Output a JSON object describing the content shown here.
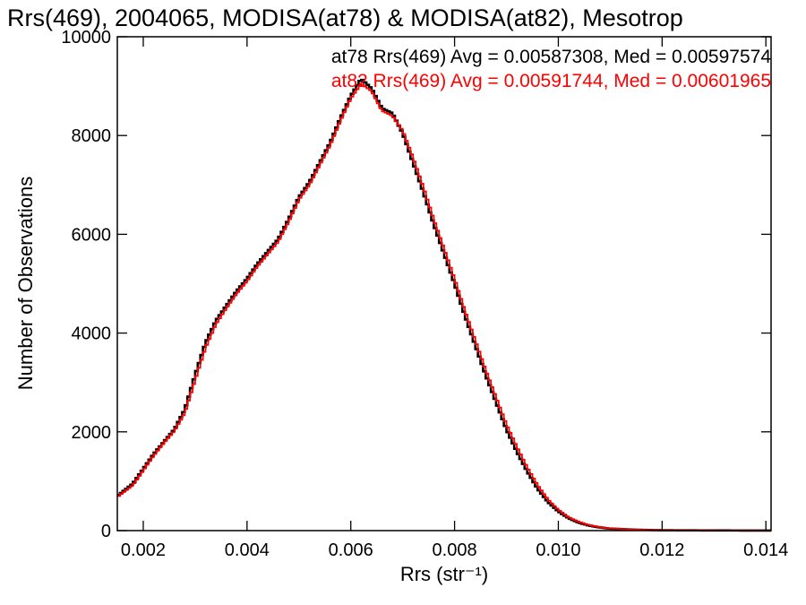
{
  "chart_data": {
    "type": "line",
    "title": "Rrs(469), 2004065, MODISA(at78) & MODISA(at82), Mesotrop",
    "xlabel": "Rrs (str⁻¹)",
    "ylabel": "Number of Observations",
    "xlim": [
      0.0015,
      0.0141
    ],
    "ylim": [
      0,
      10000
    ],
    "xticks": [
      0.002,
      0.004,
      0.006,
      0.008,
      0.01,
      0.012,
      0.014
    ],
    "xtick_labels": [
      "0.002",
      "0.004",
      "0.006",
      "0.008",
      "0.010",
      "0.012",
      "0.014"
    ],
    "yticks": [
      0,
      2000,
      4000,
      6000,
      8000,
      10000
    ],
    "ytick_labels": [
      "0",
      "2000",
      "4000",
      "6000",
      "8000",
      "10000"
    ],
    "grid": false,
    "step": true,
    "series": [
      {
        "name": "at78",
        "color": "#000000",
        "stats_label": "at78 Rrs(469) Avg = 0.00587308, Med = 0.00597574",
        "points": [
          [
            0.0015,
            700
          ],
          [
            0.0018,
            950
          ],
          [
            0.002,
            1250
          ],
          [
            0.0022,
            1550
          ],
          [
            0.0024,
            1800
          ],
          [
            0.0026,
            2050
          ],
          [
            0.0028,
            2450
          ],
          [
            0.003,
            3150
          ],
          [
            0.0032,
            3800
          ],
          [
            0.0034,
            4250
          ],
          [
            0.0036,
            4550
          ],
          [
            0.0038,
            4850
          ],
          [
            0.004,
            5100
          ],
          [
            0.0042,
            5400
          ],
          [
            0.0044,
            5650
          ],
          [
            0.0046,
            5900
          ],
          [
            0.0048,
            6300
          ],
          [
            0.005,
            6750
          ],
          [
            0.0052,
            7050
          ],
          [
            0.0054,
            7450
          ],
          [
            0.0056,
            7850
          ],
          [
            0.0058,
            8350
          ],
          [
            0.006,
            8800
          ],
          [
            0.0062,
            9150
          ],
          [
            0.0064,
            8950
          ],
          [
            0.0066,
            8550
          ],
          [
            0.0068,
            8450
          ],
          [
            0.007,
            8050
          ],
          [
            0.0072,
            7450
          ],
          [
            0.0074,
            6850
          ],
          [
            0.0076,
            6200
          ],
          [
            0.0078,
            5600
          ],
          [
            0.008,
            5000
          ],
          [
            0.0082,
            4350
          ],
          [
            0.0084,
            3750
          ],
          [
            0.0086,
            3150
          ],
          [
            0.0088,
            2600
          ],
          [
            0.009,
            2050
          ],
          [
            0.0092,
            1600
          ],
          [
            0.0094,
            1200
          ],
          [
            0.0096,
            850
          ],
          [
            0.0098,
            580
          ],
          [
            0.01,
            390
          ],
          [
            0.0102,
            250
          ],
          [
            0.0104,
            160
          ],
          [
            0.0106,
            100
          ],
          [
            0.0108,
            65
          ],
          [
            0.011,
            40
          ],
          [
            0.0115,
            18
          ],
          [
            0.012,
            8
          ],
          [
            0.013,
            3
          ],
          [
            0.0141,
            1
          ]
        ]
      },
      {
        "name": "at82",
        "color": "#ff0000",
        "stats_label": "at82 Rrs(469) Avg = 0.00591744, Med = 0.00601965",
        "points": [
          [
            0.0015,
            680
          ],
          [
            0.0018,
            920
          ],
          [
            0.002,
            1220
          ],
          [
            0.0022,
            1520
          ],
          [
            0.0024,
            1780
          ],
          [
            0.0026,
            2020
          ],
          [
            0.0028,
            2380
          ],
          [
            0.003,
            3050
          ],
          [
            0.0032,
            3700
          ],
          [
            0.0034,
            4180
          ],
          [
            0.0036,
            4500
          ],
          [
            0.0038,
            4800
          ],
          [
            0.004,
            5050
          ],
          [
            0.0042,
            5350
          ],
          [
            0.0044,
            5600
          ],
          [
            0.0046,
            5850
          ],
          [
            0.0048,
            6250
          ],
          [
            0.005,
            6700
          ],
          [
            0.0052,
            7000
          ],
          [
            0.0054,
            7400
          ],
          [
            0.0056,
            7800
          ],
          [
            0.0058,
            8300
          ],
          [
            0.006,
            8750
          ],
          [
            0.0062,
            9050
          ],
          [
            0.0064,
            8900
          ],
          [
            0.0066,
            8500
          ],
          [
            0.0068,
            8400
          ],
          [
            0.007,
            8100
          ],
          [
            0.0072,
            7550
          ],
          [
            0.0074,
            6950
          ],
          [
            0.0076,
            6300
          ],
          [
            0.0078,
            5700
          ],
          [
            0.008,
            5100
          ],
          [
            0.0082,
            4450
          ],
          [
            0.0084,
            3850
          ],
          [
            0.0086,
            3250
          ],
          [
            0.0088,
            2700
          ],
          [
            0.009,
            2150
          ],
          [
            0.0092,
            1700
          ],
          [
            0.0094,
            1280
          ],
          [
            0.0096,
            920
          ],
          [
            0.0098,
            630
          ],
          [
            0.01,
            420
          ],
          [
            0.0102,
            270
          ],
          [
            0.0104,
            175
          ],
          [
            0.0106,
            110
          ],
          [
            0.0108,
            70
          ],
          [
            0.011,
            45
          ],
          [
            0.0115,
            20
          ],
          [
            0.012,
            9
          ],
          [
            0.013,
            3
          ],
          [
            0.0141,
            1
          ]
        ]
      }
    ]
  }
}
